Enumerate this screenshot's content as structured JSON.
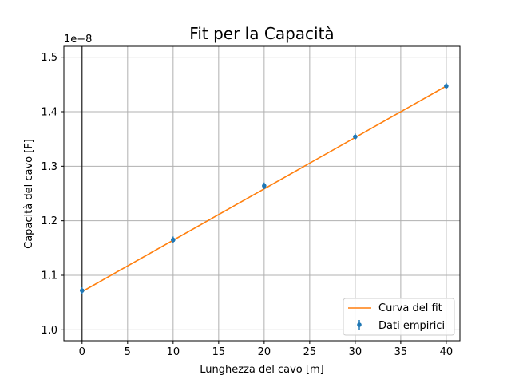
{
  "chart_data": {
    "type": "line",
    "title": "Fit per la Capacità",
    "xlabel": "Lunghezza del cavo [m]",
    "ylabel": "Capacità del cavo [F]",
    "offset_label": "1e−8",
    "xlim": [
      -2,
      41.5
    ],
    "ylim": [
      0.98,
      1.52
    ],
    "x_ticks": [
      0,
      5,
      10,
      15,
      20,
      25,
      30,
      35,
      40
    ],
    "x_tick_labels": [
      "0",
      "5",
      "10",
      "15",
      "20",
      "25",
      "30",
      "35",
      "40"
    ],
    "y_ticks": [
      1.0,
      1.1,
      1.2,
      1.3,
      1.4,
      1.5
    ],
    "y_tick_labels": [
      "1.0",
      "1.1",
      "1.2",
      "1.3",
      "1.4",
      "1.5"
    ],
    "grid": true,
    "legend_position": "lower-right",
    "series": [
      {
        "name": "Curva del fit",
        "kind": "line",
        "color": "#ff7f0e",
        "x": [
          0,
          40
        ],
        "y": [
          1.07,
          1.447
        ]
      },
      {
        "name": "Dati empirici",
        "kind": "errorbar",
        "color": "#1f77b4",
        "x": [
          0,
          10,
          20,
          30,
          40
        ],
        "y": [
          1.072,
          1.165,
          1.264,
          1.354,
          1.447
        ],
        "yerr": [
          0.006,
          0.006,
          0.006,
          0.006,
          0.006
        ]
      }
    ]
  }
}
